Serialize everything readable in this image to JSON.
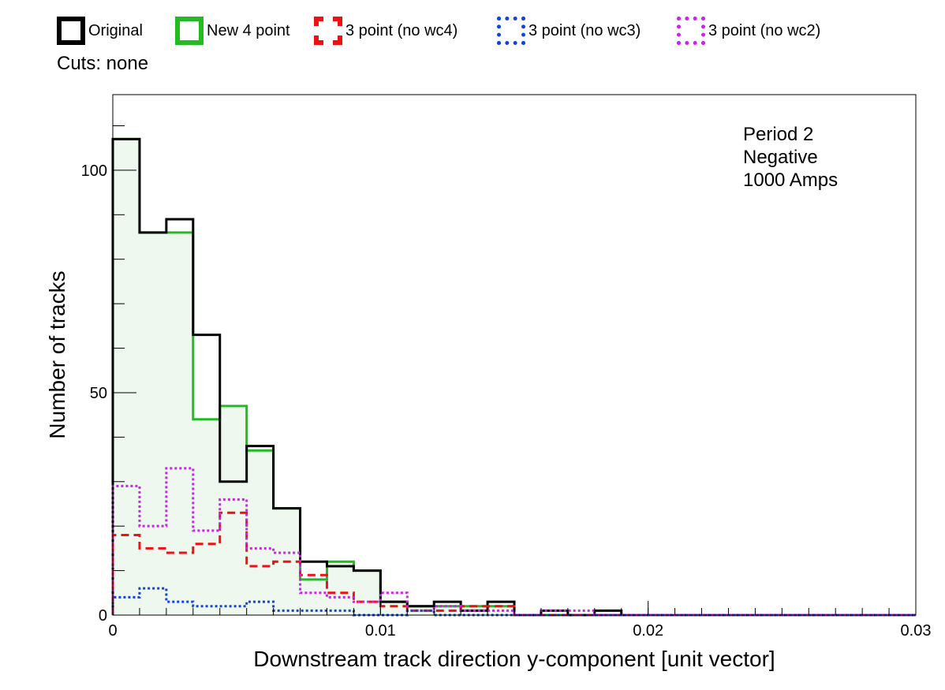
{
  "legend": [
    {
      "label": "Original",
      "color": "#000000",
      "style": "solid"
    },
    {
      "label": "New 4 point",
      "color": "#22bb22",
      "style": "solid"
    },
    {
      "label": "3 point (no wc4)",
      "color": "#ee1111",
      "style": "dashed"
    },
    {
      "label": "3 point (no wc3)",
      "color": "#1144dd",
      "style": "dotted"
    },
    {
      "label": "3 point (no wc2)",
      "color": "#cc22ee",
      "style": "dotted"
    }
  ],
  "cuts_label": "Cuts: none",
  "annotation": [
    "Period 2",
    "Negative",
    "1000 Amps"
  ],
  "chart_data": {
    "type": "histogram",
    "xlabel": "Downstream track direction y-component [unit vector]",
    "ylabel": "Number of tracks",
    "xlim": [
      0,
      0.03
    ],
    "ylim": [
      0,
      117
    ],
    "x_ticks": [
      0,
      0.01,
      0.02,
      0.03
    ],
    "x_tick_labels": [
      "0",
      "0.01",
      "0.02",
      "0.03"
    ],
    "y_ticks": [
      0,
      50,
      100
    ],
    "y_tick_labels": [
      "0",
      "50",
      "100"
    ],
    "bin_edges": [
      0,
      0.001,
      0.002,
      0.003,
      0.004,
      0.005,
      0.006,
      0.007,
      0.008,
      0.009,
      0.01,
      0.011,
      0.012,
      0.013,
      0.014,
      0.015,
      0.016,
      0.017,
      0.018,
      0.019,
      0.02,
      0.021,
      0.022,
      0.023,
      0.024,
      0.025,
      0.026,
      0.027,
      0.028,
      0.029,
      0.03
    ],
    "series": [
      {
        "name": "Original",
        "color": "#000000",
        "style": "solid",
        "fill": false,
        "values": [
          107,
          86,
          89,
          63,
          30,
          38,
          24,
          12,
          11,
          10,
          3,
          2,
          3,
          1,
          3,
          0,
          1,
          0,
          1,
          0,
          0,
          0,
          0,
          0,
          0,
          0,
          0,
          0,
          0,
          0
        ]
      },
      {
        "name": "New 4 point",
        "color": "#22bb22",
        "style": "solid",
        "fill": true,
        "fill_color": "#eef8ee",
        "values": [
          107,
          86,
          86,
          44,
          47,
          37,
          24,
          8,
          12,
          10,
          3,
          2,
          2,
          2,
          2,
          0,
          0,
          0,
          0,
          0,
          0,
          0,
          0,
          0,
          0,
          0,
          0,
          0,
          0,
          0
        ]
      },
      {
        "name": "3 point (no wc4)",
        "color": "#ee1111",
        "style": "dashed",
        "fill": false,
        "values": [
          18,
          15,
          14,
          16,
          23,
          11,
          12,
          9,
          5,
          3,
          2,
          1,
          1,
          2,
          2,
          0,
          0,
          0,
          0,
          0,
          0,
          0,
          0,
          0,
          0,
          0,
          0,
          0,
          0,
          0
        ]
      },
      {
        "name": "3 point (no wc3)",
        "color": "#1144dd",
        "style": "dotted",
        "fill": false,
        "values": [
          4,
          6,
          3,
          2,
          2,
          3,
          1,
          1,
          1,
          0,
          0,
          1,
          0,
          0,
          0,
          0,
          0,
          0,
          0,
          0,
          0,
          0,
          0,
          0,
          0,
          0,
          0,
          0,
          0,
          0
        ]
      },
      {
        "name": "3 point (no wc2)",
        "color": "#cc22ee",
        "style": "dotted",
        "fill": false,
        "values": [
          29,
          20,
          33,
          19,
          26,
          15,
          14,
          5,
          4,
          3,
          5,
          1,
          2,
          1,
          1,
          0,
          1,
          1,
          0,
          0,
          0,
          0,
          0,
          0,
          0,
          0,
          0,
          0,
          0,
          0
        ]
      }
    ]
  }
}
